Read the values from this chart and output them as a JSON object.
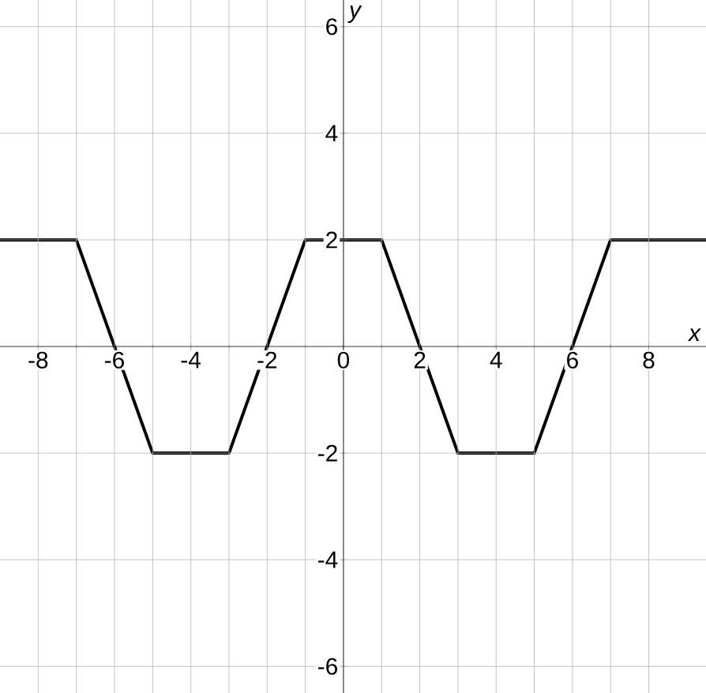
{
  "chart_data": {
    "type": "line",
    "xlabel": "x",
    "ylabel": "y",
    "x": [
      -9,
      -7,
      -5,
      -3,
      -1,
      1,
      3,
      5,
      7,
      9.5
    ],
    "series": [
      {
        "color": "#000000",
        "values": [
          2,
          2,
          -2,
          -2,
          2,
          2,
          -2,
          -2,
          2,
          2
        ]
      }
    ],
    "xlim": [
      -9,
      9.5
    ],
    "ylim": [
      -6.5,
      6.5
    ],
    "xticks": [
      -8,
      -6,
      -4,
      -2,
      0,
      2,
      4,
      6,
      8
    ],
    "yticks": [
      -6,
      -4,
      -2,
      2,
      4,
      6
    ],
    "grid": true,
    "marker": "none",
    "line_style": "solid"
  }
}
